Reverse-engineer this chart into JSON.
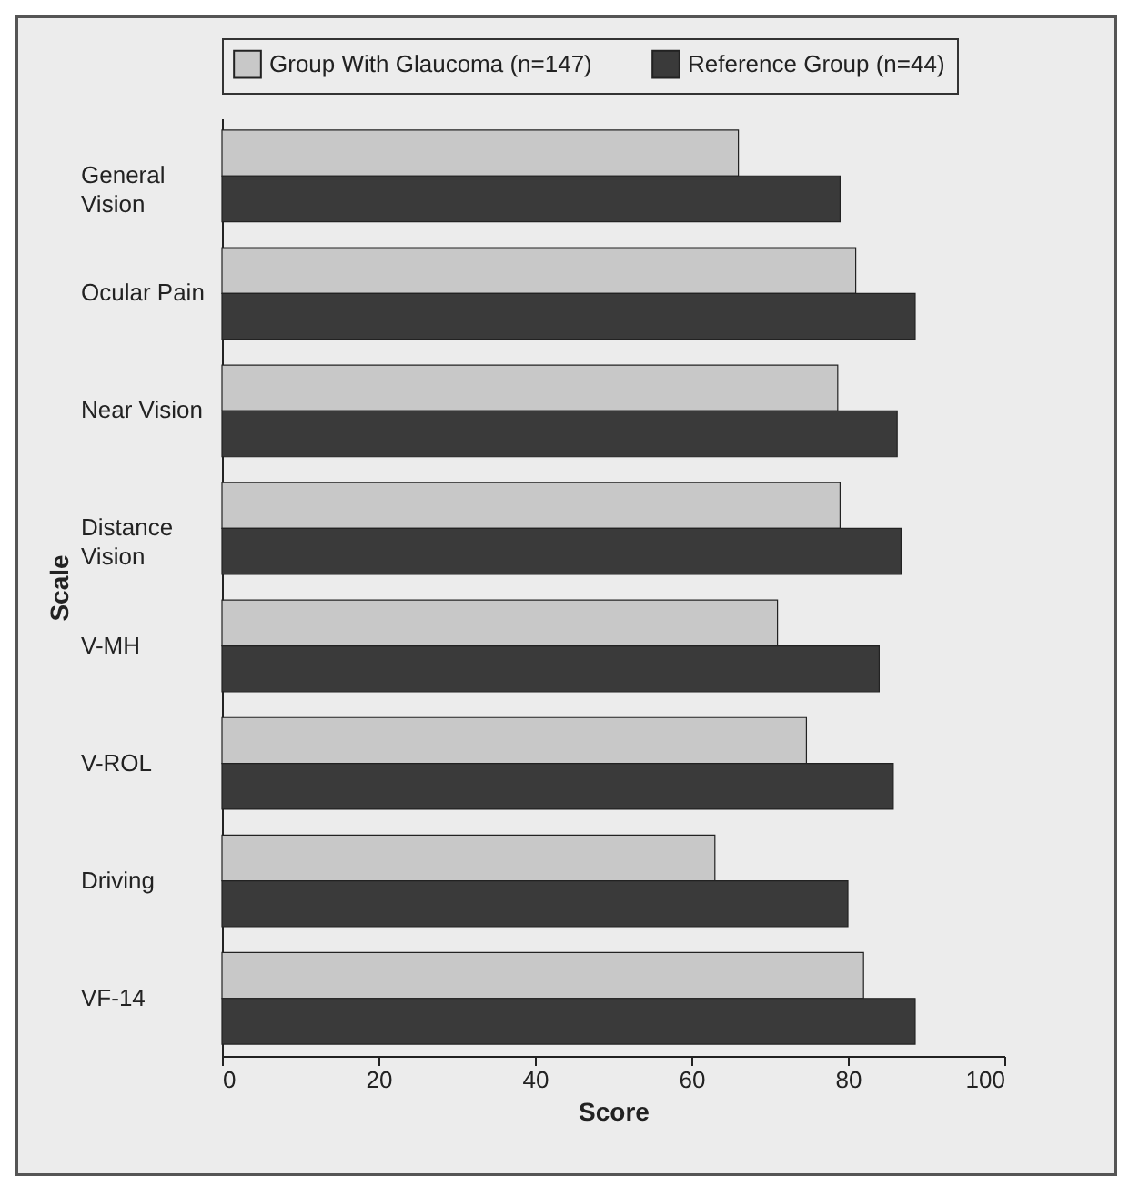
{
  "chart_data": {
    "type": "bar",
    "orientation": "horizontal",
    "xlabel": "Score",
    "ylabel": "Scale",
    "categories": [
      "General Vision",
      "Ocular Pain",
      "Near Vision",
      "Distance Vision",
      "V-MH",
      "V-ROL",
      "Driving",
      "VF-14"
    ],
    "series": [
      {
        "name": "Group With Glaucoma (n=147)",
        "color": "#c8c8c8",
        "values": [
          66,
          81,
          78.7,
          79,
          71,
          74.7,
          63,
          82
        ]
      },
      {
        "name": "Reference Group (n=44)",
        "color": "#3a3a3a",
        "values": [
          79,
          88.6,
          86.3,
          86.8,
          84,
          85.8,
          80,
          88.6
        ]
      }
    ],
    "xlim": [
      0,
      100
    ],
    "xticks": [
      0,
      20,
      40,
      60,
      80,
      100
    ],
    "grid": false,
    "legend": "top"
  }
}
